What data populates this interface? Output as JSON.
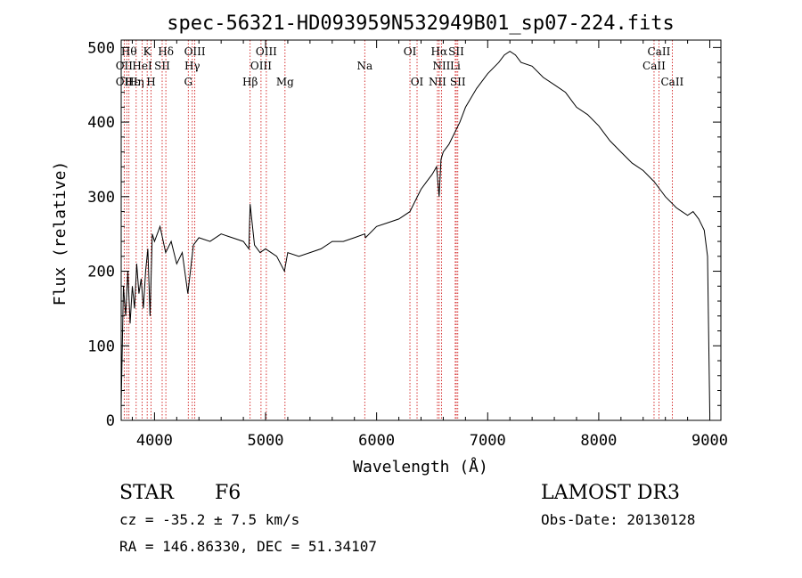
{
  "chart_data": {
    "type": "line",
    "title": "spec-56321-HD093959N532949B01_sp07-224.fits",
    "xlabel": "Wavelength (Å)",
    "ylabel": "Flux (relative)",
    "xlim": [
      3700,
      9100
    ],
    "ylim": [
      0,
      510
    ],
    "xticks": [
      4000,
      5000,
      6000,
      7000,
      8000,
      9000
    ],
    "yticks": [
      0,
      100,
      200,
      300,
      400,
      500
    ],
    "grid": false,
    "line_color": "#000000",
    "marker_color": "#cc0000",
    "series": [
      {
        "x": [
          3700,
          3720,
          3740,
          3760,
          3780,
          3800,
          3820,
          3840,
          3860,
          3880,
          3900,
          3920,
          3940,
          3960,
          3980,
          4000,
          4050,
          4100,
          4150,
          4200,
          4250,
          4300,
          4350,
          4400,
          4500,
          4600,
          4700,
          4800,
          4850,
          4861,
          4900,
          4950,
          5000,
          5100,
          5170,
          5200,
          5300,
          5400,
          5500,
          5600,
          5700,
          5800,
          5893,
          5900,
          6000,
          6100,
          6200,
          6300,
          6400,
          6450,
          6500,
          6540,
          6563,
          6580,
          6600,
          6650,
          6700,
          6750,
          6800,
          6900,
          7000,
          7100,
          7150,
          7200,
          7250,
          7300,
          7400,
          7500,
          7600,
          7700,
          7800,
          7900,
          8000,
          8100,
          8200,
          8300,
          8400,
          8500,
          8550,
          8600,
          8700,
          8800,
          8850,
          8900,
          8950,
          8980,
          9000
        ],
        "y": [
          20,
          180,
          140,
          200,
          130,
          180,
          150,
          210,
          170,
          190,
          150,
          200,
          230,
          140,
          250,
          240,
          260,
          225,
          240,
          210,
          225,
          170,
          235,
          245,
          240,
          250,
          245,
          240,
          230,
          290,
          235,
          225,
          230,
          220,
          200,
          225,
          220,
          225,
          230,
          240,
          240,
          245,
          250,
          245,
          260,
          265,
          270,
          280,
          310,
          320,
          330,
          340,
          300,
          350,
          360,
          370,
          385,
          400,
          420,
          445,
          465,
          480,
          490,
          495,
          490,
          480,
          475,
          460,
          450,
          440,
          420,
          410,
          395,
          375,
          360,
          345,
          335,
          320,
          310,
          300,
          285,
          275,
          280,
          270,
          255,
          220,
          10
        ]
      }
    ],
    "lines": [
      {
        "x": 3727,
        "labels": [
          "OII"
        ]
      },
      {
        "x": 3750,
        "labels": [
          "OII"
        ]
      },
      {
        "x": 3770,
        "labels": [
          "Hθ"
        ]
      },
      {
        "x": 3835,
        "labels": [
          "Hε",
          "Hη"
        ]
      },
      {
        "x": 3889,
        "labels": [
          "HeI"
        ]
      },
      {
        "x": 3934,
        "labels": [
          "K"
        ]
      },
      {
        "x": 3969,
        "labels": [
          "H"
        ]
      },
      {
        "x": 4069,
        "labels": [
          "SII"
        ]
      },
      {
        "x": 4102,
        "labels": [
          "Hδ"
        ]
      },
      {
        "x": 4304,
        "labels": [
          "G"
        ]
      },
      {
        "x": 4340,
        "labels": [
          "Hγ"
        ]
      },
      {
        "x": 4363,
        "labels": [
          "OIII"
        ]
      },
      {
        "x": 4861,
        "labels": [
          "Hβ"
        ]
      },
      {
        "x": 4959,
        "labels": [
          "OIII"
        ]
      },
      {
        "x": 5007,
        "labels": [
          "OIII"
        ]
      },
      {
        "x": 5175,
        "labels": [
          "Mg"
        ]
      },
      {
        "x": 5893,
        "labels": [
          "Na"
        ]
      },
      {
        "x": 6300,
        "labels": [
          "OI"
        ]
      },
      {
        "x": 6364,
        "labels": [
          "OI"
        ]
      },
      {
        "x": 6548,
        "labels": [
          "NII"
        ]
      },
      {
        "x": 6563,
        "labels": [
          "Hα"
        ]
      },
      {
        "x": 6584,
        "labels": [
          "NII"
        ]
      },
      {
        "x": 6708,
        "labels": [
          "Li"
        ]
      },
      {
        "x": 6717,
        "labels": [
          "SII"
        ]
      },
      {
        "x": 6731,
        "labels": [
          "SII"
        ]
      },
      {
        "x": 8498,
        "labels": [
          "CaII"
        ]
      },
      {
        "x": 8542,
        "labels": [
          "CaII"
        ]
      },
      {
        "x": 8662,
        "labels": [
          "CaII"
        ]
      }
    ],
    "labels": [
      {
        "text": "Hθ",
        "x": 3770,
        "row": 0
      },
      {
        "text": "K",
        "x": 3934,
        "row": 0
      },
      {
        "text": "Hδ",
        "x": 4102,
        "row": 0
      },
      {
        "text": "OIII",
        "x": 4363,
        "row": 0
      },
      {
        "text": "OIII",
        "x": 5007,
        "row": 0
      },
      {
        "text": "OI",
        "x": 6300,
        "row": 0
      },
      {
        "text": "Hα",
        "x": 6563,
        "row": 0
      },
      {
        "text": "SII",
        "x": 6717,
        "row": 0
      },
      {
        "text": "CaII",
        "x": 8542,
        "row": 0
      },
      {
        "text": "OII",
        "x": 3727,
        "row": 1
      },
      {
        "text": "HeI",
        "x": 3889,
        "row": 1
      },
      {
        "text": "SII",
        "x": 4069,
        "row": 1
      },
      {
        "text": "Hγ",
        "x": 4340,
        "row": 1
      },
      {
        "text": "OIII",
        "x": 4959,
        "row": 1
      },
      {
        "text": "Na",
        "x": 5893,
        "row": 1
      },
      {
        "text": "NII",
        "x": 6584,
        "row": 1
      },
      {
        "text": "Li",
        "x": 6708,
        "row": 1
      },
      {
        "text": "CaII",
        "x": 8498,
        "row": 1
      },
      {
        "text": "OII",
        "x": 3727,
        "row": 2
      },
      {
        "text": "Hε",
        "x": 3800,
        "row": 2
      },
      {
        "text": "Hη",
        "x": 3835,
        "row": 2
      },
      {
        "text": "H",
        "x": 3969,
        "row": 2
      },
      {
        "text": "G",
        "x": 4304,
        "row": 2
      },
      {
        "text": "Hβ",
        "x": 4861,
        "row": 2
      },
      {
        "text": "Mg",
        "x": 5175,
        "row": 2
      },
      {
        "text": "OI",
        "x": 6364,
        "row": 2
      },
      {
        "text": "NII",
        "x": 6548,
        "row": 2
      },
      {
        "text": "SII",
        "x": 6731,
        "row": 2
      },
      {
        "text": "CaII",
        "x": 8662,
        "row": 2
      }
    ]
  },
  "info": {
    "object_class": "STAR",
    "subclass": "F6",
    "survey": "LAMOST DR3",
    "cz": "cz = -35.2 ± 7.5 km/s",
    "obs_date": "Obs-Date: 20130128",
    "coords": "RA = 146.86330, DEC =  51.34107"
  }
}
